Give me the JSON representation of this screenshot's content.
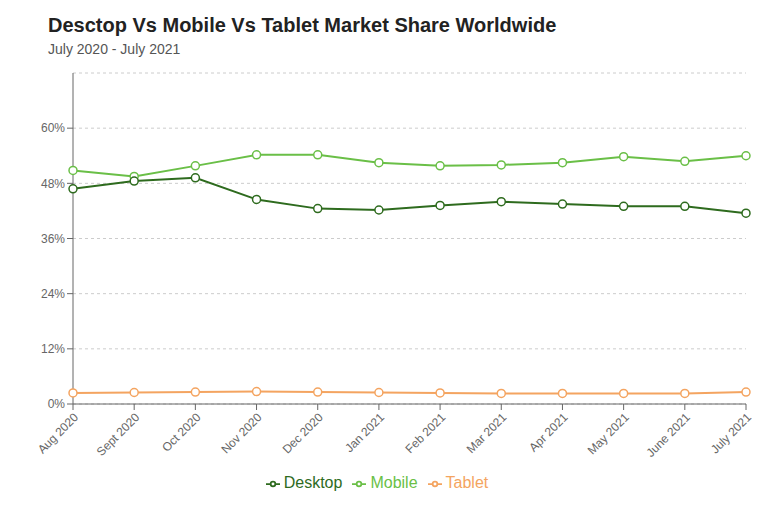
{
  "chart_data": {
    "type": "line",
    "title": "Desctop Vs Mobile Vs Tablet Market Share Worldwide",
    "subtitle": "July 2020 - July 2021",
    "categories": [
      "Aug 2020",
      "Sept 2020",
      "Oct 2020",
      "Nov 2020",
      "Dec 2020",
      "Jan 2021",
      "Feb 2021",
      "Mar 2021",
      "Apr 2021",
      "May 2021",
      "June 2021",
      "July 2021"
    ],
    "series": [
      {
        "name": "Mobile",
        "color": "#6abf47",
        "values": [
          50.8,
          49.5,
          51.8,
          54.2,
          54.2,
          52.5,
          51.8,
          52.0,
          52.5,
          53.8,
          52.8,
          54.0
        ]
      },
      {
        "name": "Desktop",
        "color": "#2e6b1e",
        "values": [
          46.8,
          48.5,
          49.2,
          44.5,
          42.5,
          42.2,
          43.2,
          44.0,
          43.5,
          43.0,
          43.0,
          41.5
        ]
      },
      {
        "name": "Tablet",
        "color": "#f4a460",
        "values": [
          2.4,
          2.5,
          2.6,
          2.7,
          2.6,
          2.5,
          2.4,
          2.3,
          2.3,
          2.3,
          2.3,
          2.6
        ]
      }
    ],
    "ylim": [
      0,
      72
    ],
    "yticks": [
      {
        "value": 0,
        "label": "0%"
      },
      {
        "value": 12,
        "label": "12%"
      },
      {
        "value": 24,
        "label": "24%"
      },
      {
        "value": 36,
        "label": "36%"
      },
      {
        "value": 48,
        "label": "48%"
      },
      {
        "value": 60,
        "label": "60%"
      }
    ],
    "grid": true,
    "legend": "bottom",
    "marker": "circle"
  }
}
